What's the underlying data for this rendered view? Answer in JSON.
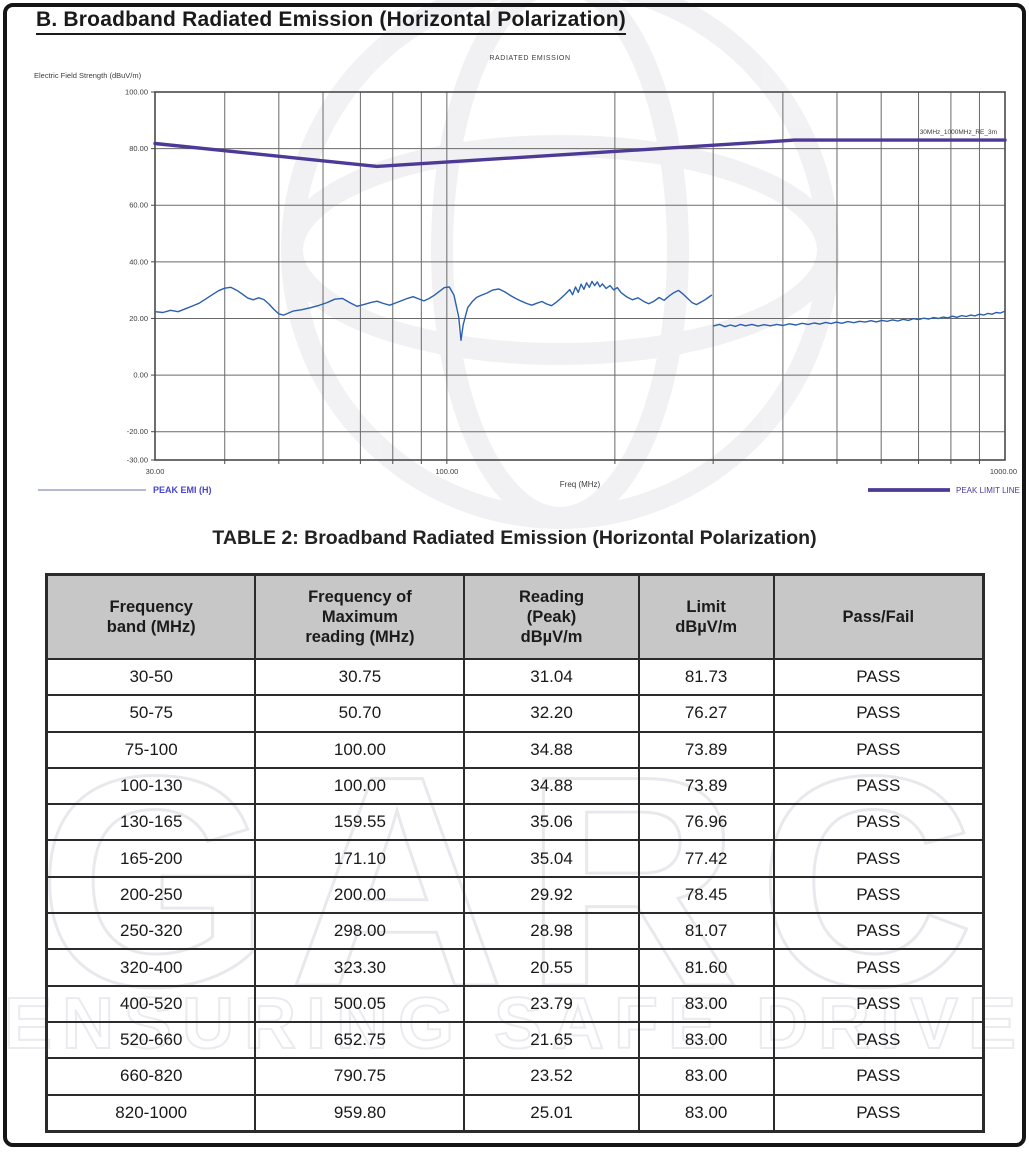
{
  "page": {
    "title": "B. Broadband Radiated Emission (Horizontal Polarization)"
  },
  "chart": {
    "title": "RADIATED EMISSION",
    "y_axis_title": "Electric Field Strength (dBuV/m)",
    "x_axis_title": "Freq (MHz)",
    "annotation": "30MHz_1000MHz_RE_3m",
    "legend_left": "PEAK EMI (H)",
    "legend_right": "PEAK LIMIT LINE",
    "colors": {
      "trace": "#2b5fae",
      "limit": "#4d3a96",
      "legend_left_text": "#4646c8",
      "grid": "#6a6a6a",
      "frame": "#4a4a4a",
      "text": "#3c3c3c"
    }
  },
  "chart_data": {
    "type": "line",
    "x_scale": "log",
    "x_range": [
      30,
      1000
    ],
    "y_range": [
      -30,
      100
    ],
    "grid": true,
    "y_ticks": [
      {
        "v": 100,
        "label": "100.00"
      },
      {
        "v": 80,
        "label": "80.00"
      },
      {
        "v": 60,
        "label": "60.00"
      },
      {
        "v": 40,
        "label": "40.00"
      },
      {
        "v": 20,
        "label": "20.00"
      },
      {
        "v": 0,
        "label": "0.00"
      },
      {
        "v": -20,
        "label": "-20.00"
      },
      {
        "v": -30,
        "label": "-30.00"
      }
    ],
    "x_gridlines": [
      40,
      50,
      60,
      70,
      80,
      90,
      100,
      200,
      300,
      400,
      500,
      600,
      700,
      800,
      900
    ],
    "x_ticks": [
      {
        "v": 30,
        "label": "30.00"
      },
      {
        "v": 100,
        "label": "100.00"
      },
      {
        "v": 1000,
        "label": "1000.00"
      }
    ],
    "series": [
      {
        "name": "PEAK EMI (H)",
        "color": "#2b5fae",
        "width": 1.4,
        "segments": [
          [
            [
              30,
              22.4
            ],
            [
              31,
              22.1
            ],
            [
              32,
              22.9
            ],
            [
              33,
              22.4
            ],
            [
              34,
              23.4
            ],
            [
              35,
              24.4
            ],
            [
              36,
              25.4
            ],
            [
              37,
              26.9
            ],
            [
              38,
              28.4
            ],
            [
              39,
              29.8
            ],
            [
              40,
              30.7
            ],
            [
              41,
              31.0
            ],
            [
              42,
              30.0
            ],
            [
              43,
              28.6
            ],
            [
              44,
              27.2
            ],
            [
              45,
              26.6
            ],
            [
              46,
              27.3
            ],
            [
              47,
              26.7
            ],
            [
              48,
              25.1
            ],
            [
              49,
              23.2
            ],
            [
              50,
              21.6
            ],
            [
              51,
              21.2
            ],
            [
              52,
              21.9
            ],
            [
              53,
              22.6
            ],
            [
              55,
              23.1
            ],
            [
              57,
              23.8
            ],
            [
              59,
              24.6
            ],
            [
              61,
              25.6
            ],
            [
              63,
              26.8
            ],
            [
              65,
              27.1
            ],
            [
              67,
              25.6
            ],
            [
              69,
              24.3
            ],
            [
              71,
              24.9
            ],
            [
              73,
              25.6
            ],
            [
              75,
              26.1
            ],
            [
              77,
              25.3
            ],
            [
              79,
              24.7
            ],
            [
              81,
              25.5
            ],
            [
              83,
              26.3
            ],
            [
              85,
              27.1
            ],
            [
              87,
              27.7
            ],
            [
              89,
              26.9
            ],
            [
              91,
              26.2
            ],
            [
              93,
              27.1
            ],
            [
              95,
              28.2
            ],
            [
              97,
              29.6
            ],
            [
              99,
              30.9
            ],
            [
              101,
              31.1
            ],
            [
              103,
              28.2
            ],
            [
              105,
              20.5
            ],
            [
              106,
              12.3
            ],
            [
              107,
              17.8
            ],
            [
              109,
              23.8
            ],
            [
              111,
              25.9
            ],
            [
              113,
              27.4
            ],
            [
              115,
              28.1
            ],
            [
              118,
              29.0
            ],
            [
              121,
              30.1
            ],
            [
              124,
              30.4
            ],
            [
              127,
              29.4
            ],
            [
              130,
              28.1
            ],
            [
              133,
              27.0
            ],
            [
              136,
              26.1
            ],
            [
              139,
              25.3
            ],
            [
              142,
              24.7
            ],
            [
              145,
              25.4
            ],
            [
              148,
              26.0
            ],
            [
              151,
              25.1
            ],
            [
              154,
              24.5
            ],
            [
              157,
              25.7
            ],
            [
              160,
              27.1
            ],
            [
              163,
              28.6
            ],
            [
              166,
              30.2
            ],
            [
              168,
              28.4
            ],
            [
              170,
              31.1
            ],
            [
              172,
              29.2
            ],
            [
              174,
              32.1
            ],
            [
              176,
              30.3
            ],
            [
              178,
              32.6
            ],
            [
              180,
              31.0
            ],
            [
              182,
              33.1
            ],
            [
              184,
              31.6
            ],
            [
              186,
              32.9
            ],
            [
              188,
              31.2
            ],
            [
              190,
              32.2
            ],
            [
              193,
              30.6
            ],
            [
              196,
              31.6
            ],
            [
              199,
              30.1
            ],
            [
              202,
              30.9
            ],
            [
              205,
              29.2
            ],
            [
              210,
              27.6
            ],
            [
              215,
              26.6
            ],
            [
              220,
              27.3
            ],
            [
              225,
              26.1
            ],
            [
              230,
              25.2
            ],
            [
              235,
              26.1
            ],
            [
              240,
              27.4
            ],
            [
              245,
              26.4
            ],
            [
              250,
              27.9
            ],
            [
              255,
              29.1
            ],
            [
              260,
              29.9
            ],
            [
              265,
              28.6
            ],
            [
              270,
              27.1
            ],
            [
              275,
              25.6
            ],
            [
              280,
              24.9
            ],
            [
              285,
              25.7
            ],
            [
              290,
              26.6
            ],
            [
              294,
              27.4
            ],
            [
              298,
              28.2
            ]
          ],
          [
            [
              301,
              17.4
            ],
            [
              308,
              17.9
            ],
            [
              315,
              17.1
            ],
            [
              322,
              17.7
            ],
            [
              329,
              17.2
            ],
            [
              336,
              17.9
            ],
            [
              343,
              17.4
            ],
            [
              352,
              17.9
            ],
            [
              361,
              17.3
            ],
            [
              370,
              17.8
            ],
            [
              380,
              17.4
            ],
            [
              390,
              17.9
            ],
            [
              400,
              17.5
            ],
            [
              411,
              18.1
            ],
            [
              422,
              17.7
            ],
            [
              433,
              18.3
            ],
            [
              444,
              17.9
            ],
            [
              455,
              18.4
            ],
            [
              466,
              18.0
            ],
            [
              477,
              18.6
            ],
            [
              488,
              18.2
            ],
            [
              499,
              18.7
            ],
            [
              510,
              18.3
            ],
            [
              523,
              18.9
            ],
            [
              536,
              18.5
            ],
            [
              549,
              19.0
            ],
            [
              562,
              18.7
            ],
            [
              575,
              19.2
            ],
            [
              588,
              18.8
            ],
            [
              601,
              19.3
            ],
            [
              615,
              19.0
            ],
            [
              629,
              19.5
            ],
            [
              643,
              19.1
            ],
            [
              657,
              19.7
            ],
            [
              671,
              19.3
            ],
            [
              685,
              19.9
            ],
            [
              700,
              19.6
            ],
            [
              715,
              20.1
            ],
            [
              730,
              19.8
            ],
            [
              745,
              20.3
            ],
            [
              760,
              20.0
            ],
            [
              775,
              20.5
            ],
            [
              790,
              20.2
            ],
            [
              805,
              20.8
            ],
            [
              820,
              20.4
            ],
            [
              836,
              21.0
            ],
            [
              852,
              20.7
            ],
            [
              868,
              21.2
            ],
            [
              884,
              20.9
            ],
            [
              900,
              21.5
            ],
            [
              916,
              21.2
            ],
            [
              932,
              21.8
            ],
            [
              948,
              21.5
            ],
            [
              964,
              22.1
            ],
            [
              980,
              21.9
            ],
            [
              1000,
              22.6
            ]
          ]
        ]
      },
      {
        "name": "PEAK LIMIT LINE",
        "color": "#4d3a96",
        "width": 3.4,
        "segments": [
          [
            [
              30,
              81.8
            ],
            [
              75,
              73.7
            ],
            [
              420,
              83.0
            ],
            [
              1000,
              83.0
            ]
          ]
        ]
      }
    ]
  },
  "table": {
    "caption": "TABLE 2: Broadband Radiated Emission (Horizontal Polarization)",
    "columns": [
      "Frequency\nband (MHz)",
      "Frequency of\nMaximum\nreading (MHz)",
      "Reading\n(Peak)\ndBµV/m",
      "Limit\ndBµV/m",
      "Pass/Fail"
    ],
    "rows": [
      [
        "30-50",
        "30.75",
        "31.04",
        "81.73",
        "PASS"
      ],
      [
        "50-75",
        "50.70",
        "32.20",
        "76.27",
        "PASS"
      ],
      [
        "75-100",
        "100.00",
        "34.88",
        "73.89",
        "PASS"
      ],
      [
        "100-130",
        "100.00",
        "34.88",
        "73.89",
        "PASS"
      ],
      [
        "130-165",
        "159.55",
        "35.06",
        "76.96",
        "PASS"
      ],
      [
        "165-200",
        "171.10",
        "35.04",
        "77.42",
        "PASS"
      ],
      [
        "200-250",
        "200.00",
        "29.92",
        "78.45",
        "PASS"
      ],
      [
        "250-320",
        "298.00",
        "28.98",
        "81.07",
        "PASS"
      ],
      [
        "320-400",
        "323.30",
        "20.55",
        "81.60",
        "PASS"
      ],
      [
        "400-520",
        "500.05",
        "23.79",
        "83.00",
        "PASS"
      ],
      [
        "520-660",
        "652.75",
        "21.65",
        "83.00",
        "PASS"
      ],
      [
        "660-820",
        "790.75",
        "23.52",
        "83.00",
        "PASS"
      ],
      [
        "820-1000",
        "959.80",
        "25.01",
        "83.00",
        "PASS"
      ]
    ]
  },
  "watermark": {
    "line1": "GARC",
    "line2": "ENSURING SAFE DRIVE"
  }
}
